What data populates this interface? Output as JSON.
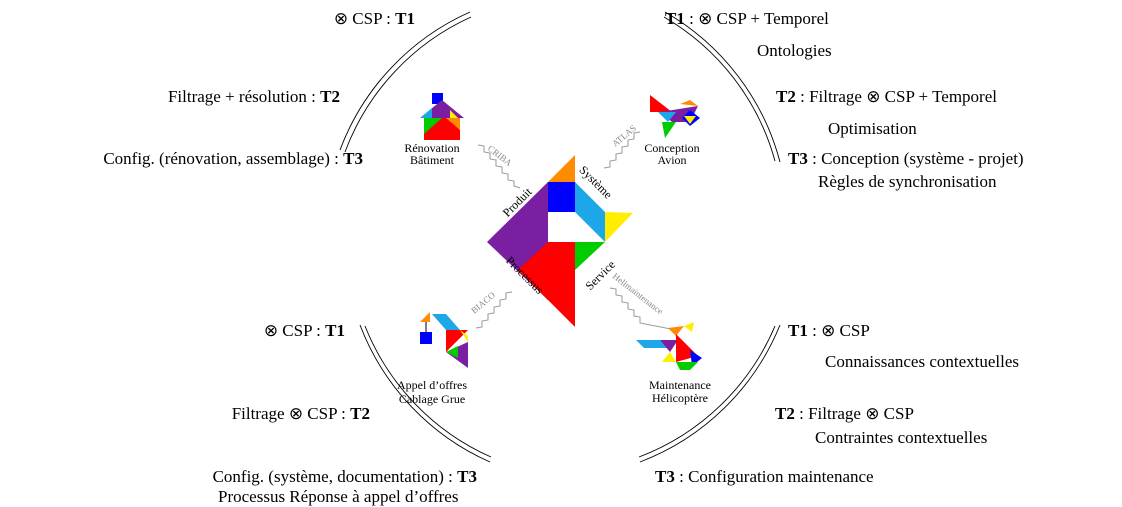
{
  "top_left": {
    "lines": [
      {
        "text": "⊗ CSP : ",
        "label": "T1"
      },
      {
        "text": "Filtrage + résolution : ",
        "label": "T2"
      },
      {
        "text": "Config. (rénovation, assemblage) : ",
        "label": "T3"
      }
    ]
  },
  "top_right": {
    "lines": [
      {
        "label": "T1",
        "text": " : ⊗ CSP + Temporel"
      },
      {
        "text": "Ontologies"
      },
      {
        "label": "T2",
        "text": " : Filtrage ⊗ CSP + Temporel"
      },
      {
        "text": "Optimisation"
      },
      {
        "label": "T3",
        "text": " : Conception (système - projet)"
      },
      {
        "text": "Règles de synchronisation"
      }
    ]
  },
  "bottom_left": {
    "lines": [
      {
        "text": "⊗ CSP : ",
        "label": "T1"
      },
      {
        "text": "Filtrage ⊗ CSP : ",
        "label": "T2"
      },
      {
        "text": "Config. (système, documentation) : ",
        "label": "T3"
      },
      {
        "text": "Processus Réponse à appel d’offres"
      }
    ]
  },
  "bottom_right": {
    "lines": [
      {
        "label": "T1",
        "text": " : ⊗ CSP"
      },
      {
        "text": "Connaissances contextuelles"
      },
      {
        "label": "T2",
        "text": " : Filtrage ⊗ CSP"
      },
      {
        "text": "Contraintes contextuelles"
      },
      {
        "label": "T3",
        "text": " : Configuration maintenance"
      }
    ]
  },
  "center": {
    "labels": [
      "Produit",
      "Système",
      "Processus",
      "Service"
    ]
  },
  "cases": [
    {
      "name": [
        "Rénovation",
        "Bâtiment"
      ],
      "project": "CRIBA"
    },
    {
      "name": [
        "Conception",
        "Avion"
      ],
      "project": "ATLAS"
    },
    {
      "name": [
        "Appel d’offres",
        "Cablage Grue"
      ],
      "project": "BIACO"
    },
    {
      "name": [
        "Maintenance",
        "Hélicoptère"
      ],
      "project": "Helimaintenance"
    }
  ]
}
